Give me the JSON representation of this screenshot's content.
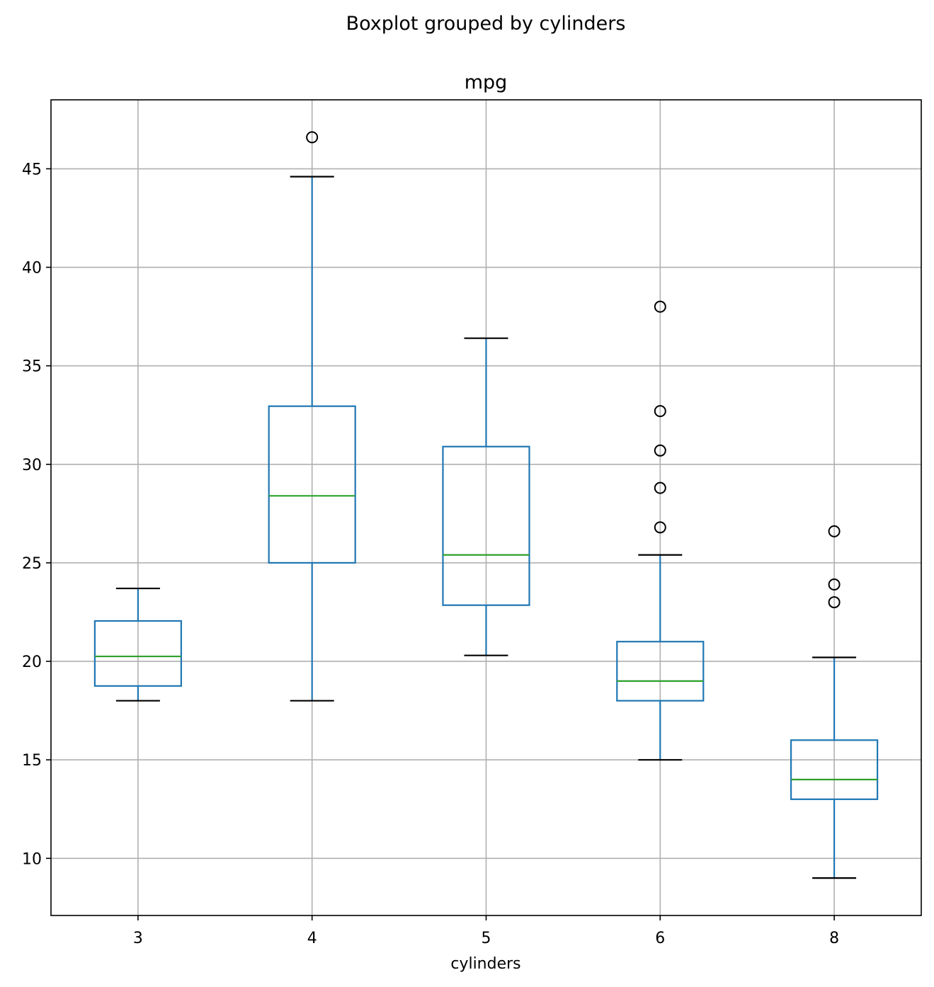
{
  "chart_data": {
    "type": "boxplot",
    "suptitle": "Boxplot grouped by cylinders",
    "title": "mpg",
    "xlabel": "cylinders",
    "ylabel": "",
    "categories": [
      "3",
      "4",
      "5",
      "6",
      "8"
    ],
    "ylim": [
      7.1,
      48.5
    ],
    "yticks": [
      10,
      15,
      20,
      25,
      30,
      35,
      40,
      45
    ],
    "grid": true,
    "colors": {
      "box": "#1f77b4",
      "median": "#2ca02c",
      "whisker_cap": "#000000",
      "flier": "#000000",
      "grid": "#b0b0b0",
      "frame": "#000000"
    },
    "boxes": [
      {
        "category": "3",
        "whislo": 18.0,
        "q1": 18.75,
        "med": 20.25,
        "q3": 22.05,
        "whishi": 23.7,
        "fliers": []
      },
      {
        "category": "4",
        "whislo": 18.0,
        "q1": 25.0,
        "med": 28.4,
        "q3": 32.95,
        "whishi": 44.6,
        "fliers": [
          46.6
        ]
      },
      {
        "category": "5",
        "whislo": 20.3,
        "q1": 22.85,
        "med": 25.4,
        "q3": 30.9,
        "whishi": 36.4,
        "fliers": []
      },
      {
        "category": "6",
        "whislo": 15.0,
        "q1": 18.0,
        "med": 19.0,
        "q3": 21.0,
        "whishi": 25.4,
        "fliers": [
          26.8,
          28.8,
          30.7,
          32.7,
          38.0
        ]
      },
      {
        "category": "8",
        "whislo": 9.0,
        "q1": 13.0,
        "med": 14.0,
        "q3": 16.0,
        "whishi": 20.2,
        "fliers": [
          23.0,
          23.9,
          26.6
        ]
      }
    ]
  }
}
